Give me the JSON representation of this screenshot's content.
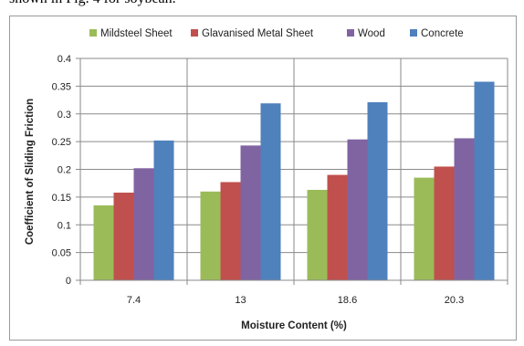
{
  "caption_fragment": "shown in Fig. 4 for soybean.",
  "chart_data": {
    "type": "bar",
    "categories": [
      "7.4",
      "13",
      "18.6",
      "20.3"
    ],
    "series": [
      {
        "name": "Mildsteel Sheet",
        "color": "#9bbb59",
        "values": [
          0.135,
          0.16,
          0.163,
          0.185
        ]
      },
      {
        "name": "Glavanised Metal Sheet",
        "color": "#c0504d",
        "values": [
          0.158,
          0.177,
          0.19,
          0.205
        ]
      },
      {
        "name": "Wood",
        "color": "#8064a2",
        "values": [
          0.202,
          0.243,
          0.254,
          0.256
        ]
      },
      {
        "name": "Concrete",
        "color": "#4f81bd",
        "values": [
          0.252,
          0.319,
          0.321,
          0.358
        ]
      }
    ],
    "xlabel": "Moisture Content (%)",
    "ylabel": "Coefficient of Sliding Friction",
    "ylim": [
      0,
      0.4
    ],
    "yticks": [
      "0",
      "0.05",
      "0.1",
      "0.15",
      "0.2",
      "0.25",
      "0.3",
      "0.35",
      "0.4"
    ],
    "grid": true,
    "legend_position": "top"
  }
}
